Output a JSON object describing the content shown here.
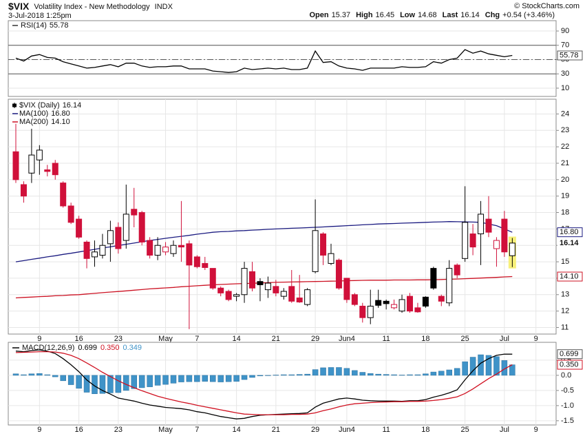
{
  "header": {
    "symbol": "$VIX",
    "name": "Volatility Index - New Methodology",
    "exchange": "INDX",
    "watermark": "© StockCharts.com",
    "timestamp": "3-Jul-2018 1:25pm",
    "quote": [
      {
        "label": "Open",
        "value": "15.37"
      },
      {
        "label": "High",
        "value": "16.45"
      },
      {
        "label": "Low",
        "value": "14.68"
      },
      {
        "label": "Last",
        "value": "16.14"
      },
      {
        "label": "Chg",
        "value": "+0.54 (+3.46%)"
      }
    ]
  },
  "chart_data": [
    {
      "type": "line",
      "ylim": [
        -1.6,
        104.5
      ],
      "yticks": [
        10,
        30,
        50,
        70,
        90
      ],
      "grid": true,
      "reference_lines": [
        {
          "value": 70,
          "style": "solid"
        },
        {
          "value": 50,
          "style": "dashdot"
        },
        {
          "value": 30,
          "style": "solid"
        }
      ],
      "series": [
        {
          "name": "RSI(14)",
          "color": "#000000",
          "value_box": true,
          "values": [
            52,
            48,
            55,
            57,
            53,
            52,
            47,
            44,
            41,
            38,
            39,
            41,
            43,
            40,
            45,
            45,
            41,
            39,
            40,
            40,
            41,
            41,
            37,
            37,
            37,
            34,
            33,
            32,
            33,
            38,
            36,
            37,
            38,
            37,
            38,
            36,
            36,
            38,
            62,
            46,
            47,
            41,
            38,
            37,
            35,
            38,
            38,
            38,
            38,
            40,
            39,
            39,
            40,
            47,
            45,
            50,
            52,
            64,
            59,
            62,
            58,
            56,
            54,
            55.78,
            null,
            null,
            null
          ]
        }
      ]
    },
    {
      "type": "candlestick",
      "name": "$VIX (Daily)",
      "up_color": "#000000",
      "down_color": "#d0103a",
      "close_box": true,
      "categories": [
        null,
        null,
        null,
        "9",
        null,
        null,
        null,
        null,
        "16",
        null,
        null,
        null,
        null,
        "23",
        null,
        null,
        null,
        null,
        null,
        "May",
        null,
        null,
        null,
        "7",
        null,
        null,
        null,
        null,
        "14",
        null,
        null,
        null,
        null,
        "21",
        null,
        null,
        null,
        null,
        "29",
        null,
        null,
        null,
        "Jun4",
        null,
        null,
        null,
        null,
        "11",
        null,
        null,
        null,
        null,
        "18",
        null,
        null,
        null,
        null,
        "25",
        null,
        null,
        null,
        null,
        "Jul",
        null,
        null,
        null,
        "9"
      ],
      "open": [
        21.7,
        19.7,
        20.4,
        21.2,
        20.6,
        21.0,
        19.8,
        18.4,
        17.6,
        16.2,
        15.3,
        15.4,
        16.1,
        17.1,
        16.3,
        18.2,
        18.0,
        16.3,
        15.4,
        15.6,
        15.5,
        16.0,
        16.1,
        15.3,
        14.9,
        14.6,
        13.4,
        13.2,
        12.9,
        13.0,
        14.4,
        13.8,
        13.3,
        13.5,
        12.9,
        13.5,
        12.8,
        12.4,
        14.4,
        16.7,
        14.9,
        15.1,
        14.0,
        13.0,
        12.3,
        11.6,
        12.65,
        12.6,
        12.2,
        12.0,
        12.9,
        12.2,
        12.85,
        14.6,
        12.9,
        12.5,
        14.8,
        15.2,
        16.7,
        16.7,
        17.6,
        15.8,
        17.6,
        15.37,
        null,
        null,
        null
      ],
      "high": [
        23.4,
        19.9,
        23.1,
        22.1,
        20.9,
        21.2,
        19.9,
        18.6,
        17.8,
        16.3,
        16.3,
        16.7,
        17.5,
        17.4,
        19.7,
        19.5,
        18.1,
        16.5,
        16.5,
        16.2,
        16.3,
        18.7,
        16.3,
        15.4,
        15.3,
        14.6,
        13.5,
        13.3,
        13.1,
        15.0,
        15.0,
        14.0,
        14.1,
        13.9,
        13.4,
        14.5,
        14.2,
        13.4,
        18.8,
        16.8,
        16.1,
        15.2,
        14.0,
        13.1,
        12.5,
        13.3,
        13.3,
        12.7,
        12.7,
        13.0,
        13.1,
        12.5,
        12.9,
        14.7,
        13.0,
        15.1,
        14.9,
        19.6,
        17.3,
        18.7,
        19.0,
        16.5,
        18.1,
        16.45,
        null,
        null,
        null
      ],
      "low": [
        19.8,
        18.6,
        19.8,
        20.3,
        20.2,
        20.0,
        18.3,
        17.3,
        16.4,
        14.6,
        14.7,
        15.2,
        15.0,
        15.5,
        15.8,
        17.1,
        16.0,
        15.2,
        15.1,
        15.4,
        15.3,
        15.0,
        10.9,
        14.6,
        14.5,
        13.3,
        12.9,
        12.6,
        12.6,
        12.5,
        13.2,
        12.6,
        12.8,
        12.9,
        12.7,
        12.5,
        12.5,
        12.3,
        14.3,
        14.8,
        14.8,
        13.3,
        12.5,
        12.3,
        11.3,
        11.2,
        12.2,
        12.1,
        12.1,
        11.9,
        11.9,
        11.9,
        12.2,
        13.3,
        12.3,
        12.3,
        14.0,
        15.0,
        15.4,
        14.8,
        16.5,
        14.7,
        15.3,
        14.68,
        null,
        null,
        null
      ],
      "close": [
        20.0,
        19.0,
        21.5,
        21.8,
        20.5,
        20.3,
        18.4,
        17.4,
        16.5,
        15.2,
        15.6,
        16.0,
        16.9,
        15.8,
        17.9,
        17.85,
        16.2,
        15.4,
        16.0,
        15.9,
        16.0,
        15.9,
        14.8,
        14.7,
        14.65,
        13.4,
        13.1,
        12.7,
        13.0,
        14.6,
        13.4,
        13.6,
        13.7,
        13.1,
        13.2,
        12.6,
        12.55,
        13.3,
        16.9,
        15.4,
        15.5,
        13.4,
        12.7,
        12.4,
        11.6,
        12.3,
        12.35,
        12.45,
        12.4,
        12.7,
        12.0,
        11.95,
        12.3,
        13.4,
        12.6,
        14.6,
        14.2,
        17.4,
        15.9,
        17.9,
        16.8,
        16.3,
        15.6,
        16.14,
        null,
        null,
        null
      ],
      "ylim": [
        10.6,
        24.9
      ],
      "yticks": [
        11,
        12,
        13,
        14,
        15,
        16,
        17,
        18,
        19,
        20,
        21,
        22,
        23,
        24
      ],
      "grid": true,
      "series": [
        {
          "name": "MA(100)",
          "color": "#1a1a80",
          "value_box": true,
          "last_label": "16.80",
          "values": [
            15.0,
            15.07,
            15.15,
            15.22,
            15.3,
            15.37,
            15.45,
            15.52,
            15.6,
            15.68,
            15.76,
            15.84,
            15.91,
            15.99,
            16.07,
            16.14,
            16.22,
            16.3,
            16.36,
            16.43,
            16.49,
            16.55,
            16.61,
            16.68,
            16.74,
            16.8,
            16.83,
            16.85,
            16.88,
            16.9,
            16.93,
            16.95,
            16.98,
            17.0,
            17.02,
            17.04,
            17.06,
            17.08,
            17.1,
            17.12,
            17.15,
            17.17,
            17.2,
            17.22,
            17.25,
            17.27,
            17.3,
            17.32,
            17.33,
            17.35,
            17.37,
            17.38,
            17.4,
            17.42,
            17.43,
            17.45,
            17.44,
            17.43,
            17.42,
            17.4,
            17.3,
            17.2,
            17.0,
            16.8,
            null,
            null,
            null
          ]
        },
        {
          "name": "MA(200)",
          "color": "#cc1122",
          "value_box": true,
          "last_label": "14.10",
          "values": [
            12.8,
            12.83,
            12.85,
            12.88,
            12.9,
            12.93,
            12.95,
            12.98,
            13.0,
            13.04,
            13.08,
            13.12,
            13.16,
            13.19,
            13.23,
            13.27,
            13.31,
            13.35,
            13.38,
            13.41,
            13.44,
            13.48,
            13.51,
            13.54,
            13.57,
            13.6,
            13.62,
            13.64,
            13.66,
            13.68,
            13.69,
            13.71,
            13.73,
            13.75,
            13.76,
            13.77,
            13.78,
            13.79,
            13.8,
            13.81,
            13.82,
            13.83,
            13.85,
            13.86,
            13.87,
            13.88,
            13.88,
            13.88,
            13.89,
            13.89,
            13.89,
            13.9,
            13.9,
            13.91,
            13.92,
            13.94,
            13.95,
            13.97,
            13.99,
            14.01,
            14.03,
            14.05,
            14.08,
            14.1,
            null,
            null,
            null
          ]
        }
      ]
    },
    {
      "type": "combo",
      "legend_title": "MACD(12,26,9)",
      "categories": [
        null,
        null,
        null,
        "9",
        null,
        null,
        null,
        null,
        "16",
        null,
        null,
        null,
        null,
        "23",
        null,
        null,
        null,
        null,
        null,
        "May",
        null,
        null,
        null,
        "7",
        null,
        null,
        null,
        null,
        "14",
        null,
        null,
        null,
        null,
        "21",
        null,
        null,
        null,
        null,
        "29",
        null,
        null,
        null,
        "Jun4",
        null,
        null,
        null,
        null,
        "11",
        null,
        null,
        null,
        null,
        "18",
        null,
        null,
        null,
        null,
        "25",
        null,
        null,
        null,
        null,
        "Jul",
        null,
        null,
        null,
        "9"
      ],
      "ylim": [
        -1.64,
        1.09
      ],
      "yticks": [
        -1.5,
        {
          "value": -1,
          "label": "-1.0"
        },
        -0.5,
        {
          "value": 0,
          "label": "0.0"
        },
        0.5
      ],
      "grid": true,
      "series": [
        {
          "type": "line",
          "color": "#000000",
          "value_box": true,
          "values": [
            0.8,
            0.78,
            0.82,
            0.84,
            0.8,
            0.72,
            0.55,
            0.35,
            0.12,
            -0.15,
            -0.35,
            -0.5,
            -0.62,
            -0.75,
            -0.8,
            -0.85,
            -0.92,
            -0.98,
            -1.02,
            -1.06,
            -1.08,
            -1.1,
            -1.14,
            -1.2,
            -1.24,
            -1.3,
            -1.36,
            -1.4,
            -1.44,
            -1.42,
            -1.36,
            -1.32,
            -1.3,
            -1.29,
            -1.28,
            -1.27,
            -1.26,
            -1.24,
            -1.05,
            -0.92,
            -0.85,
            -0.78,
            -0.75,
            -0.78,
            -0.82,
            -0.84,
            -0.85,
            -0.85,
            -0.85,
            -0.86,
            -0.84,
            -0.84,
            -0.8,
            -0.72,
            -0.66,
            -0.58,
            -0.48,
            -0.15,
            0.15,
            0.4,
            0.55,
            0.66,
            0.7,
            0.699,
            null,
            null,
            null
          ]
        },
        {
          "type": "line",
          "color": "#d01020",
          "value_box": true,
          "last_label": "0.350",
          "values": [
            0.75,
            0.76,
            0.77,
            0.78,
            0.78,
            0.77,
            0.73,
            0.66,
            0.55,
            0.41,
            0.26,
            0.1,
            -0.04,
            -0.18,
            -0.3,
            -0.41,
            -0.51,
            -0.6,
            -0.69,
            -0.76,
            -0.82,
            -0.88,
            -0.93,
            -0.99,
            -1.04,
            -1.09,
            -1.14,
            -1.19,
            -1.24,
            -1.28,
            -1.29,
            -1.3,
            -1.3,
            -1.3,
            -1.3,
            -1.29,
            -1.29,
            -1.28,
            -1.24,
            -1.17,
            -1.11,
            -1.04,
            -0.98,
            -0.94,
            -0.92,
            -0.9,
            -0.89,
            -0.88,
            -0.87,
            -0.87,
            -0.86,
            -0.86,
            -0.85,
            -0.83,
            -0.8,
            -0.76,
            -0.71,
            -0.6,
            -0.45,
            -0.28,
            -0.11,
            0.04,
            0.21,
            0.35,
            null,
            null,
            null
          ]
        },
        {
          "type": "bar",
          "color": "#3f93c8",
          "values": [
            0.05,
            0.02,
            0.05,
            0.06,
            0.02,
            -0.05,
            -0.18,
            -0.31,
            -0.43,
            -0.56,
            -0.61,
            -0.6,
            -0.58,
            -0.57,
            -0.5,
            -0.44,
            -0.41,
            -0.38,
            -0.33,
            -0.3,
            -0.26,
            -0.22,
            -0.21,
            -0.21,
            -0.2,
            -0.21,
            -0.22,
            -0.21,
            -0.2,
            -0.14,
            -0.07,
            -0.02,
            0.0,
            0.01,
            0.02,
            0.02,
            0.03,
            0.04,
            0.19,
            0.25,
            0.26,
            0.26,
            0.23,
            0.16,
            0.1,
            0.06,
            0.04,
            0.03,
            0.02,
            0.01,
            0.02,
            0.02,
            0.05,
            0.11,
            0.14,
            0.18,
            0.23,
            0.45,
            0.6,
            0.68,
            0.66,
            0.62,
            0.49,
            0.349,
            null,
            null,
            null
          ]
        }
      ]
    }
  ]
}
